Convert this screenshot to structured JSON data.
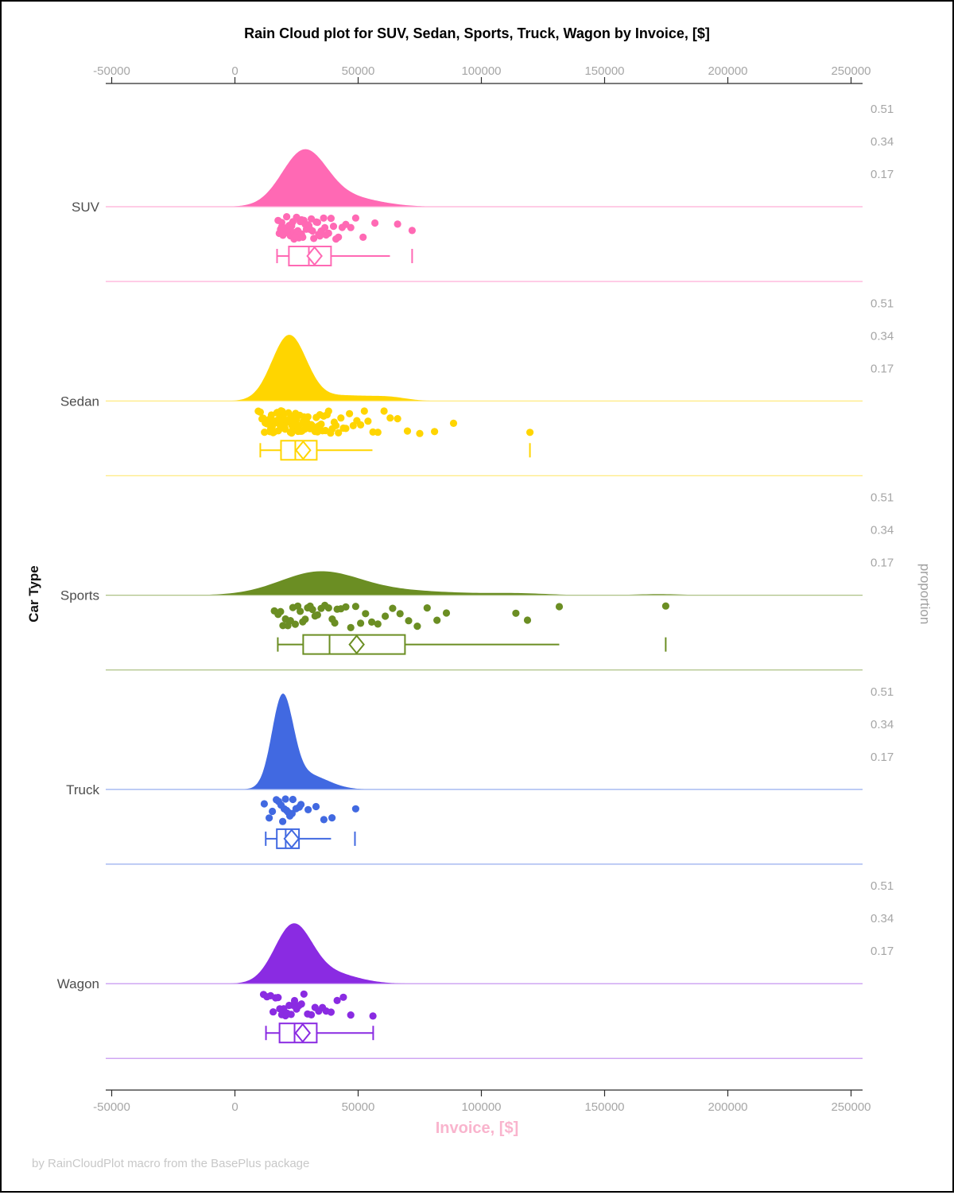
{
  "page": {
    "title": "Rain Cloud plot for SUV, Sedan, Sports, Truck, Wagon by Invoice, [$]",
    "footer": "by RainCloudPlot macro from the BasePlus package"
  },
  "chart_data": {
    "type": "raincloud (density + jittered points + box plot)",
    "title": "Rain Cloud plot for SUV, Sedan, Sports, Truck, Wagon by Invoice, [$]",
    "xlabel": "Invoice, [$]",
    "ylabel": "Car Type",
    "y2label": "proportion",
    "footer": "by RainCloudPlot macro from the BasePlus package",
    "x_axis": {
      "min": -50000,
      "max": 250000,
      "ticks": [
        -50000,
        0,
        50000,
        100000,
        150000,
        200000,
        250000
      ],
      "tick_labels": [
        "-50000",
        "0",
        "50000",
        "100000",
        "150000",
        "200000",
        "250000"
      ],
      "shown_top_and_bottom": true
    },
    "proportion_ticks": [
      "0.51",
      "0.34",
      "0.17"
    ],
    "colors": {
      "suv": "#FF69B4",
      "sedan": "#FFD500",
      "sports": "#6B8E23",
      "truck": "#4169E1",
      "wagon": "#8A2BE2",
      "axis_text": "#A6A6A6",
      "category_text": "#4D4D4D",
      "xlabel_text": "#F9B4CD",
      "footer_text": "#C8C8C8",
      "axis_line": "#2B2B2B"
    },
    "categories": [
      {
        "label": "SUV",
        "color": "#FF69B4",
        "peak_proportion": 0.3,
        "density": {
          "range": [
            -5000,
            85000
          ],
          "components": [
            {
              "mean": 28000,
              "sd": 9000,
              "weight": 0.8
            },
            {
              "mean": 45000,
              "sd": 13000,
              "weight": 0.2
            }
          ]
        },
        "box": {
          "whisker_low": 17100,
          "q1": 21900,
          "median": 30000,
          "q3": 39000,
          "whisker_high": 62900,
          "mean": 32300,
          "outliers": [
            71900
          ],
          "cap_right": false
        },
        "points": [
          17500,
          18000,
          18500,
          19000,
          19000,
          19500,
          20000,
          20000,
          20500,
          21000,
          21000,
          21500,
          22000,
          22000,
          22500,
          23000,
          23000,
          23500,
          24000,
          24000,
          24500,
          25000,
          25000,
          25500,
          26000,
          26500,
          27000,
          27000,
          27500,
          28000,
          28500,
          29000,
          29500,
          30000,
          30500,
          31000,
          31500,
          32000,
          33000,
          33500,
          34000,
          34500,
          35000,
          36000,
          36500,
          37000,
          38000,
          39000,
          40000,
          41000,
          42000,
          43500,
          45000,
          47000,
          49000,
          52000,
          56800,
          66000,
          71900
        ]
      },
      {
        "label": "Sedan",
        "color": "#FFD500",
        "peak_proportion": 0.345,
        "density": {
          "range": [
            -6000,
            90000
          ],
          "components": [
            {
              "mean": 22000,
              "sd": 7000,
              "weight": 0.85
            },
            {
              "mean": 45000,
              "sd": 11000,
              "weight": 0.11
            },
            {
              "mean": 63000,
              "sd": 7000,
              "weight": 0.04
            }
          ]
        },
        "box": {
          "whisker_low": 10300,
          "q1": 18700,
          "median": 24500,
          "q3": 33200,
          "whisker_high": 55800,
          "mean": 27700,
          "outliers": [
            119700
          ],
          "cap_right": false
        },
        "points": [
          9500,
          10300,
          11000,
          11500,
          12000,
          12300,
          12800,
          13000,
          13200,
          13600,
          14000,
          14200,
          14500,
          14800,
          15000,
          15200,
          15500,
          15800,
          16000,
          16200,
          16500,
          16800,
          17000,
          17200,
          17400,
          17600,
          17900,
          18000,
          18200,
          18500,
          18700,
          19000,
          19200,
          19400,
          19700,
          20000,
          20200,
          20400,
          20700,
          21000,
          21200,
          21500,
          21700,
          22000,
          22200,
          22500,
          22700,
          23000,
          23200,
          23500,
          23800,
          24000,
          24300,
          24600,
          25000,
          25300,
          25600,
          26000,
          26300,
          26600,
          27000,
          27300,
          27700,
          28000,
          28400,
          28800,
          29200,
          29600,
          30000,
          30500,
          31000,
          31500,
          32000,
          32500,
          33000,
          33500,
          34000,
          34500,
          35000,
          35500,
          36000,
          36700,
          37400,
          38000,
          38800,
          39500,
          40300,
          41000,
          42000,
          43000,
          44000,
          45000,
          46500,
          48000,
          49500,
          51000,
          52500,
          54000,
          56000,
          58000,
          60500,
          63000,
          66000,
          70000,
          75000,
          81000,
          88700,
          119700
        ]
      },
      {
        "label": "Sports",
        "color": "#6B8E23",
        "peak_proportion": 0.125,
        "density": {
          "range": [
            -30000,
            195000
          ],
          "components": [
            {
              "mean": 34000,
              "sd": 16000,
              "weight": 0.72
            },
            {
              "mean": 65000,
              "sd": 24000,
              "weight": 0.22
            },
            {
              "mean": 115000,
              "sd": 12000,
              "weight": 0.04
            },
            {
              "mean": 172000,
              "sd": 9000,
              "weight": 0.02
            }
          ]
        },
        "box": {
          "whisker_low": 17400,
          "q1": 27700,
          "median": 38400,
          "q3": 69000,
          "whisker_high": 131600,
          "mean": 49400,
          "outliers": [
            174800
          ],
          "cap_right": false
        },
        "points": [
          16000,
          17500,
          18500,
          19500,
          20500,
          21500,
          22500,
          23500,
          24500,
          25500,
          26500,
          27500,
          28500,
          29500,
          30500,
          31500,
          32500,
          33500,
          35000,
          36500,
          38000,
          39500,
          40500,
          41500,
          43000,
          45000,
          47000,
          49000,
          51000,
          53000,
          55500,
          58000,
          61000,
          64000,
          67000,
          70500,
          74000,
          78000,
          82000,
          85800,
          114000,
          118700,
          131600,
          174800
        ]
      },
      {
        "label": "Truck",
        "color": "#4169E1",
        "peak_proportion": 0.5,
        "density": {
          "range": [
            -8000,
            62000
          ],
          "components": [
            {
              "mean": 19300,
              "sd": 4300,
              "weight": 0.75
            },
            {
              "mean": 29000,
              "sd": 8500,
              "weight": 0.25
            }
          ]
        },
        "box": {
          "whisker_low": 12500,
          "q1": 17000,
          "median": 20600,
          "q3": 26000,
          "whisker_high": 39000,
          "mean": 23000,
          "outliers": [
            48700
          ],
          "cap_right": false
        },
        "points": [
          11900,
          13900,
          15200,
          16800,
          17700,
          18700,
          19400,
          20000,
          20500,
          21000,
          21600,
          22300,
          23200,
          23500,
          24800,
          26100,
          26800,
          29700,
          32900,
          36100,
          39400,
          49000
        ]
      },
      {
        "label": "Wagon",
        "color": "#8A2BE2",
        "peak_proportion": 0.315,
        "density": {
          "range": [
            -9000,
            76000
          ],
          "components": [
            {
              "mean": 23500,
              "sd": 7500,
              "weight": 0.78
            },
            {
              "mean": 38000,
              "sd": 11000,
              "weight": 0.22
            }
          ]
        },
        "box": {
          "whisker_low": 12600,
          "q1": 18100,
          "median": 24200,
          "q3": 33200,
          "whisker_high": 56100,
          "mean": 27500,
          "outliers": [],
          "cap_right": true
        },
        "points": [
          11600,
          13000,
          14500,
          15500,
          16500,
          17500,
          18200,
          19000,
          19800,
          20500,
          21200,
          22000,
          22800,
          23500,
          24200,
          25000,
          26000,
          27000,
          28000,
          29500,
          31000,
          32500,
          34000,
          35500,
          37000,
          39000,
          41500,
          44000,
          47000,
          56000
        ]
      }
    ]
  }
}
